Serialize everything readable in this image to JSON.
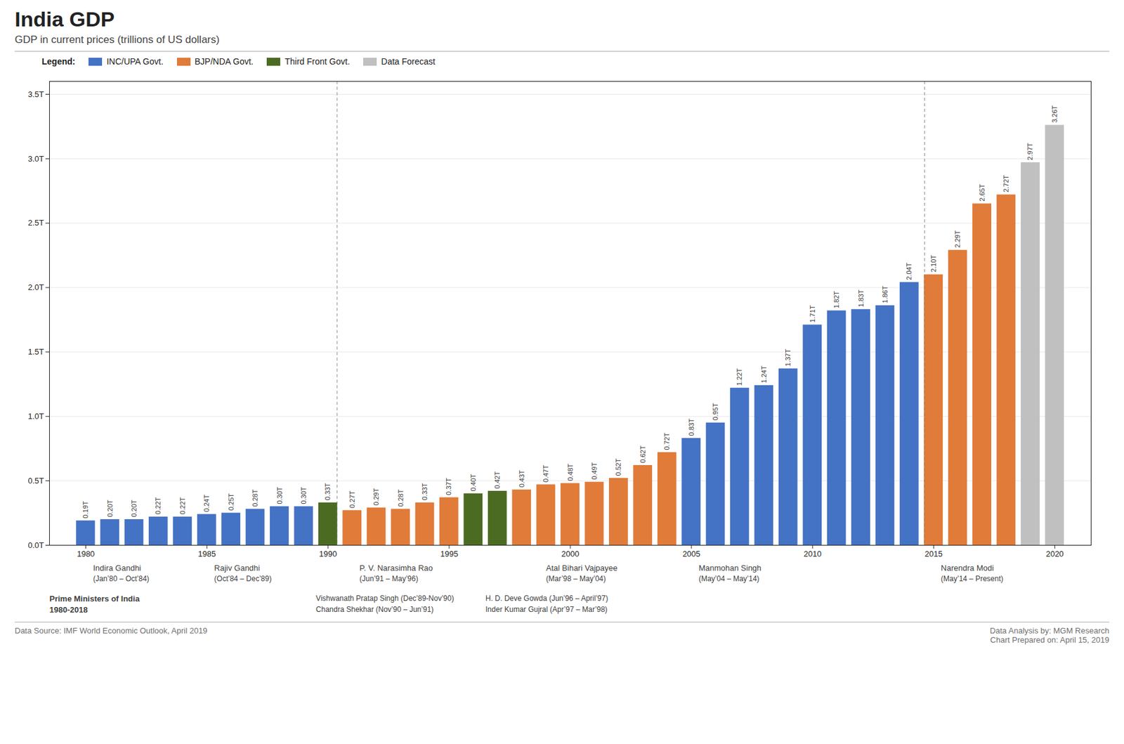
{
  "chart_data": {
    "type": "bar",
    "title": "India GDP",
    "subtitle": "GDP in current prices (trillions of US dollars)",
    "x": [
      1980,
      1981,
      1982,
      1983,
      1984,
      1985,
      1986,
      1987,
      1988,
      1989,
      1990,
      1991,
      1992,
      1993,
      1994,
      1995,
      1996,
      1997,
      1998,
      1999,
      2000,
      2001,
      2002,
      2003,
      2004,
      2005,
      2006,
      2007,
      2008,
      2009,
      2010,
      2011,
      2012,
      2013,
      2014,
      2015,
      2016,
      2017,
      2018,
      2019,
      2020
    ],
    "values": [
      0.19,
      0.2,
      0.2,
      0.22,
      0.22,
      0.24,
      0.25,
      0.28,
      0.3,
      0.3,
      0.33,
      0.27,
      0.29,
      0.28,
      0.33,
      0.37,
      0.4,
      0.42,
      0.43,
      0.47,
      0.48,
      0.49,
      0.52,
      0.62,
      0.72,
      0.83,
      0.95,
      1.22,
      1.24,
      1.37,
      1.71,
      1.82,
      1.83,
      1.86,
      2.04,
      2.1,
      2.29,
      2.65,
      2.72,
      2.97,
      3.26
    ],
    "value_labels": [
      "0.19T",
      "0.20T",
      "0.20T",
      "0.22T",
      "0.22T",
      "0.24T",
      "0.25T",
      "0.28T",
      "0.30T",
      "0.30T",
      "0.33T",
      "0.27T",
      "0.29T",
      "0.28T",
      "0.33T",
      "0.37T",
      "0.40T",
      "0.42T",
      "0.43T",
      "0.47T",
      "0.48T",
      "0.49T",
      "0.52T",
      "0.62T",
      "0.72T",
      "0.83T",
      "0.95T",
      "1.22T",
      "1.24T",
      "1.37T",
      "1.71T",
      "1.82T",
      "1.83T",
      "1.86T",
      "2.04T",
      "2.10T",
      "2.29T",
      "2.65T",
      "2.72T",
      "2.97T",
      "3.26T"
    ],
    "data_labels": true,
    "colors": [
      "#4472C4",
      "#4472C4",
      "#4472C4",
      "#4472C4",
      "#4472C4",
      "#4472C4",
      "#4472C4",
      "#4472C4",
      "#4472C4",
      "#4472C4",
      "#4C6B22",
      "#E07B39",
      "#E07B39",
      "#E07B39",
      "#E07B39",
      "#E07B39",
      "#4C6B22",
      "#4C6B22",
      "#E07B39",
      "#E07B39",
      "#E07B39",
      "#E07B39",
      "#E07B39",
      "#E07B39",
      "#E07B39",
      "#4472C4",
      "#4472C4",
      "#4472C4",
      "#4472C4",
      "#4472C4",
      "#4472C4",
      "#4472C4",
      "#4472C4",
      "#4472C4",
      "#4472C4",
      "#E07B39",
      "#E07B39",
      "#E07B39",
      "#E07B39",
      "#C0C0C0",
      "#C0C0C0"
    ],
    "xlim": [
      1978.5,
      2021.5
    ],
    "xticks": [
      1980,
      1985,
      1990,
      1995,
      2000,
      2005,
      2010,
      2015,
      2020
    ],
    "ylim": [
      0,
      3.6
    ],
    "yticks": [
      {
        "value": 0.0,
        "label": "0.0T"
      },
      {
        "value": 0.5,
        "label": "0.5T"
      },
      {
        "value": 1.0,
        "label": "1.0T"
      },
      {
        "value": 1.5,
        "label": "1.5T"
      },
      {
        "value": 2.0,
        "label": "2.0T"
      },
      {
        "value": 2.5,
        "label": "2.5T"
      },
      {
        "value": 3.0,
        "label": "3.0T"
      },
      {
        "value": 3.5,
        "label": "3.5T"
      }
    ],
    "grid": true,
    "legend": "top-left",
    "legend_title": "Legend:",
    "legend_entries": [
      {
        "name": "INC/UPA Govt.",
        "color": "#4472C4"
      },
      {
        "name": "BJP/NDA Govt.",
        "color": "#E07B39"
      },
      {
        "name": "Third Front Govt.",
        "color": "#4C6B22"
      },
      {
        "name": "Data Forecast",
        "color": "#C0C0C0"
      }
    ],
    "vlines": [
      1990.375,
      2014.625
    ],
    "annotations": {
      "prime_ministers": [
        {
          "name": "Indira Gandhi",
          "dates": "(Jan’80 – Oct’84)",
          "x": 1980.3
        },
        {
          "name": "Rajiv Gandhi",
          "dates": "(Oct’84 – Dec’89)",
          "x": 1985.3
        },
        {
          "name": "P. V. Narasimha Rao",
          "dates": "(Jun’91 – May’96)",
          "x": 1991.3
        },
        {
          "name": "Atal Bihari Vajpayee",
          "dates": "(Mar’98 – May’04)",
          "x": 1999.0
        },
        {
          "name": "Manmohan Singh",
          "dates": "(May’04 – May’14)",
          "x": 2005.3
        },
        {
          "name": "Narendra Modi",
          "dates": "(May’14 – Present)",
          "x": 2015.3
        }
      ],
      "other_prime_ministers": [
        [
          {
            "text": "Vishwanath Pratap Singh (Dec’89-Nov’90)",
            "x": 1989.5
          },
          {
            "text": "H. D. Deve Gowda (Jun’96 – April’97)",
            "x": 1996.5
          }
        ],
        [
          {
            "text": "Chandra Shekhar (Nov’90 – Jun’91)",
            "x": 1989.5
          },
          {
            "text": "Inder Kumar Gujral (Apr’97 – Mar’98)",
            "x": 1996.5
          }
        ]
      ],
      "heading": [
        "Prime Ministers of India",
        "1980-2018"
      ]
    },
    "footer_left": "Data Source: IMF World Economic Outlook, April 2019",
    "footer_right": [
      "Data Analysis by: MGM Research",
      "Chart Prepared on: April 15, 2019"
    ]
  }
}
